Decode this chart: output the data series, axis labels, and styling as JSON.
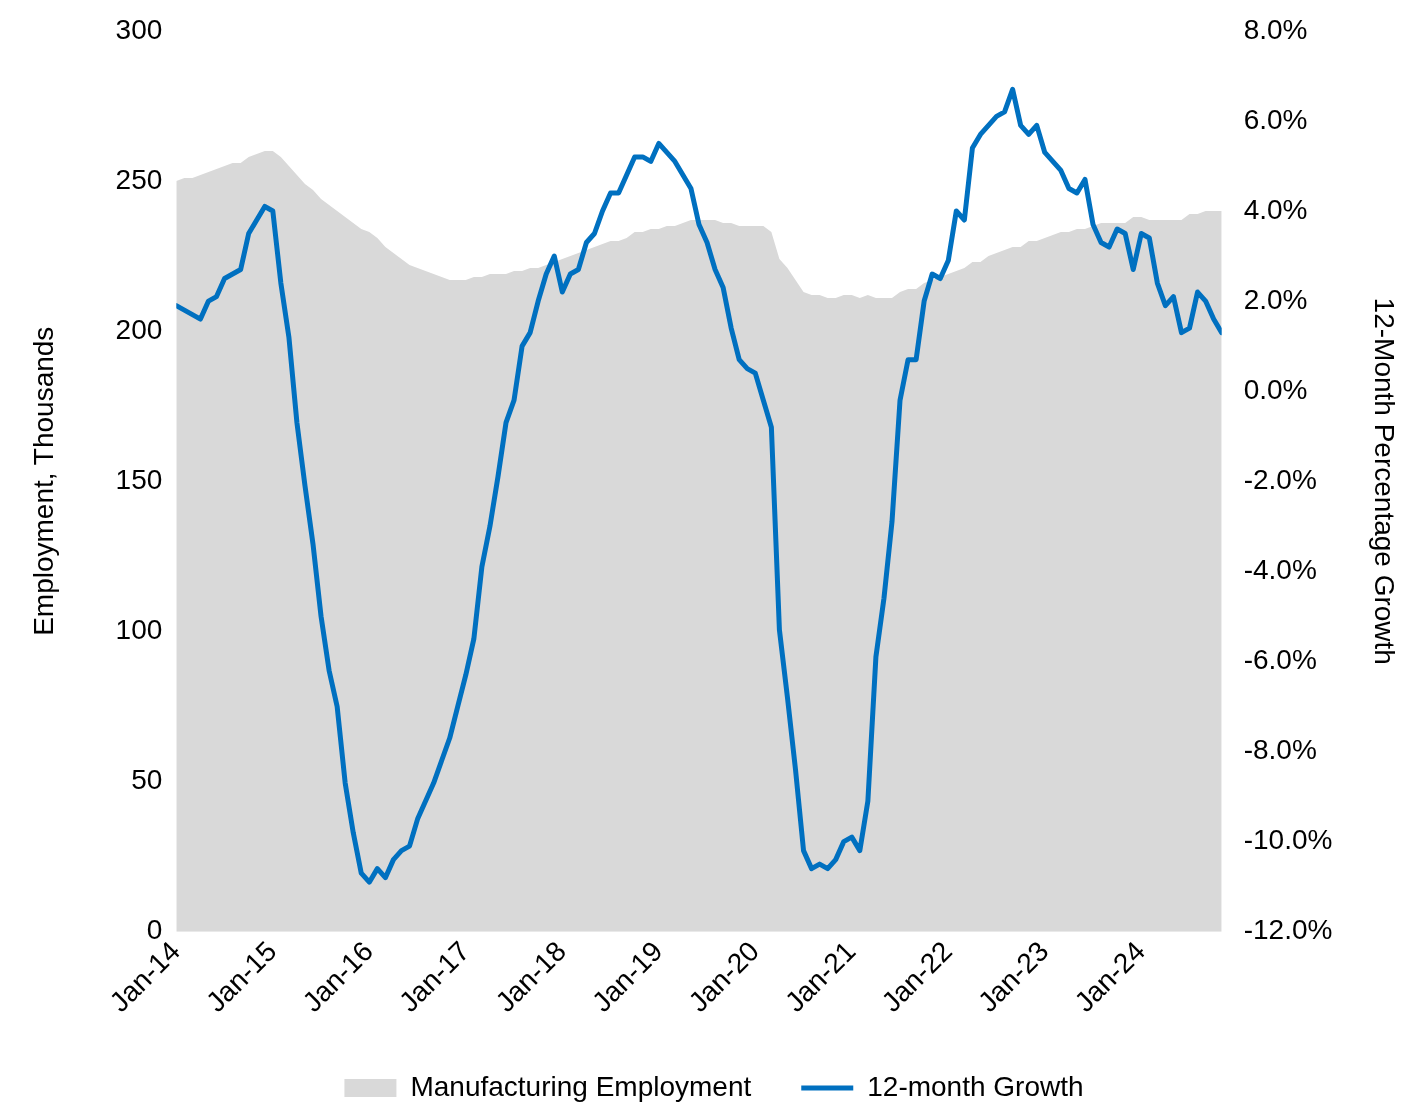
{
  "chart_data": {
    "type": "area",
    "ylabel": "Employment, Thousands",
    "y2label": "12-Month Percentage Growth",
    "x": [
      "2014-01",
      "2014-02",
      "2014-03",
      "2014-04",
      "2014-05",
      "2014-06",
      "2014-07",
      "2014-08",
      "2014-09",
      "2014-10",
      "2014-11",
      "2014-12",
      "2015-01",
      "2015-02",
      "2015-03",
      "2015-04",
      "2015-05",
      "2015-06",
      "2015-07",
      "2015-08",
      "2015-09",
      "2015-10",
      "2015-11",
      "2015-12",
      "2016-01",
      "2016-02",
      "2016-03",
      "2016-04",
      "2016-05",
      "2016-06",
      "2016-07",
      "2016-08",
      "2016-09",
      "2016-10",
      "2016-11",
      "2016-12",
      "2017-01",
      "2017-02",
      "2017-03",
      "2017-04",
      "2017-05",
      "2017-06",
      "2017-07",
      "2017-08",
      "2017-09",
      "2017-10",
      "2017-11",
      "2017-12",
      "2018-01",
      "2018-02",
      "2018-03",
      "2018-04",
      "2018-05",
      "2018-06",
      "2018-07",
      "2018-08",
      "2018-09",
      "2018-10",
      "2018-11",
      "2018-12",
      "2019-01",
      "2019-02",
      "2019-03",
      "2019-04",
      "2019-05",
      "2019-06",
      "2019-07",
      "2019-08",
      "2019-09",
      "2019-10",
      "2019-11",
      "2019-12",
      "2020-01",
      "2020-02",
      "2020-03",
      "2020-04",
      "2020-05",
      "2020-06",
      "2020-07",
      "2020-08",
      "2020-09",
      "2020-10",
      "2020-11",
      "2020-12",
      "2021-01",
      "2021-02",
      "2021-03",
      "2021-04",
      "2021-05",
      "2021-06",
      "2021-07",
      "2021-08",
      "2021-09",
      "2021-10",
      "2021-11",
      "2021-12",
      "2022-01",
      "2022-02",
      "2022-03",
      "2022-04",
      "2022-05",
      "2022-06",
      "2022-07",
      "2022-08",
      "2022-09",
      "2022-10",
      "2022-11",
      "2022-12",
      "2023-01",
      "2023-02",
      "2023-03",
      "2023-04",
      "2023-05",
      "2023-06",
      "2023-07",
      "2023-08",
      "2023-09",
      "2023-10",
      "2023-11",
      "2023-12",
      "2024-01",
      "2024-02",
      "2024-03",
      "2024-04",
      "2024-05",
      "2024-06",
      "2024-07",
      "2024-08",
      "2024-09",
      "2024-10",
      "2024-11"
    ],
    "series": [
      {
        "name": "Manufacturing Employment",
        "color": "#d9d9d9",
        "values": [
          250,
          251,
          251,
          252,
          253,
          254,
          255,
          256,
          256,
          258,
          259,
          260,
          260,
          258,
          255,
          252,
          249,
          247,
          244,
          242,
          240,
          238,
          236,
          234,
          233,
          231,
          228,
          226,
          224,
          222,
          221,
          220,
          219,
          218,
          217,
          217,
          217,
          218,
          218,
          219,
          219,
          219,
          220,
          220,
          221,
          221,
          222,
          223,
          224,
          225,
          226,
          227,
          228,
          229,
          230,
          230,
          231,
          233,
          233,
          234,
          234,
          235,
          235,
          236,
          237,
          237,
          237,
          237,
          236,
          236,
          235,
          235,
          235,
          235,
          233,
          224,
          221,
          217,
          213,
          212,
          212,
          211,
          211,
          212,
          212,
          211,
          212,
          211,
          211,
          211,
          213,
          214,
          214,
          216,
          217,
          218,
          219,
          220,
          221,
          223,
          223,
          225,
          226,
          227,
          228,
          228,
          230,
          230,
          231,
          232,
          233,
          233,
          234,
          234,
          235,
          236,
          236,
          236,
          236,
          238,
          238,
          237,
          237,
          237,
          237,
          237,
          239,
          239,
          240,
          240,
          240
        ]
      },
      {
        "name": "12-month Growth",
        "type": "line",
        "color": "#0070c0",
        "axis": "y2",
        "values": [
          1.9,
          1.8,
          1.7,
          1.6,
          2.0,
          2.1,
          2.5,
          2.6,
          2.7,
          3.5,
          3.8,
          4.1,
          4.0,
          2.4,
          1.2,
          -0.7,
          -2.1,
          -3.4,
          -5.0,
          -6.2,
          -7.0,
          -8.7,
          -9.8,
          -10.7,
          -10.9,
          -10.6,
          -10.8,
          -10.4,
          -10.2,
          -10.1,
          -9.5,
          -9.1,
          -8.7,
          -8.2,
          -7.7,
          -7.0,
          -6.3,
          -5.5,
          -3.9,
          -3.0,
          -1.9,
          -0.7,
          -0.2,
          1.0,
          1.3,
          2.0,
          2.6,
          3.0,
          2.2,
          2.6,
          2.7,
          3.3,
          3.5,
          4.0,
          4.4,
          4.4,
          4.8,
          5.2,
          5.2,
          5.1,
          5.5,
          5.3,
          5.1,
          4.8,
          4.5,
          3.7,
          3.3,
          2.7,
          2.3,
          1.4,
          0.7,
          0.5,
          0.4,
          -0.2,
          -0.8,
          -5.3,
          -6.8,
          -8.4,
          -10.2,
          -10.6,
          -10.5,
          -10.6,
          -10.4,
          -10.0,
          -9.9,
          -10.2,
          -9.1,
          -5.9,
          -4.6,
          -2.9,
          -0.2,
          0.7,
          0.7,
          2.0,
          2.6,
          2.5,
          2.9,
          4.0,
          3.8,
          5.4,
          5.7,
          5.9,
          6.1,
          6.2,
          6.7,
          5.9,
          5.7,
          5.9,
          5.3,
          5.1,
          4.9,
          4.5,
          4.4,
          4.7,
          3.7,
          3.3,
          3.2,
          3.6,
          3.5,
          2.7,
          3.5,
          3.4,
          2.4,
          1.9,
          2.1,
          1.3,
          1.4,
          2.2,
          2.0,
          1.6,
          1.3
        ]
      }
    ],
    "xlim": [
      "2014-01",
      "2024-11"
    ],
    "xticks": [
      {
        "value": "2014-01",
        "label": "Jan-14"
      },
      {
        "value": "2015-01",
        "label": "Jan-15"
      },
      {
        "value": "2016-01",
        "label": "Jan-16"
      },
      {
        "value": "2017-01",
        "label": "Jan-17"
      },
      {
        "value": "2018-01",
        "label": "Jan-18"
      },
      {
        "value": "2019-01",
        "label": "Jan-19"
      },
      {
        "value": "2020-01",
        "label": "Jan-20"
      },
      {
        "value": "2021-01",
        "label": "Jan-21"
      },
      {
        "value": "2022-01",
        "label": "Jan-22"
      },
      {
        "value": "2023-01",
        "label": "Jan-23"
      },
      {
        "value": "2024-01",
        "label": "Jan-24"
      }
    ],
    "ylim": [
      0,
      300
    ],
    "yticks": [
      0,
      50,
      100,
      150,
      200,
      250,
      300
    ],
    "y2lim": [
      -12,
      8
    ],
    "y2ticks": [
      {
        "value": -12,
        "label": "-12.0%"
      },
      {
        "value": -10,
        "label": "-10.0%"
      },
      {
        "value": -8,
        "label": "-8.0%"
      },
      {
        "value": -6,
        "label": "-6.0%"
      },
      {
        "value": -4,
        "label": "-4.0%"
      },
      {
        "value": -2,
        "label": "-2.0%"
      },
      {
        "value": 0,
        "label": "0.0%"
      },
      {
        "value": 2,
        "label": "2.0%"
      },
      {
        "value": 4,
        "label": "4.0%"
      },
      {
        "value": 6,
        "label": "6.0%"
      },
      {
        "value": 8,
        "label": "8.0%"
      }
    ],
    "grid": false,
    "legend": "bottom",
    "marker": "none",
    "line_style": "solid"
  }
}
